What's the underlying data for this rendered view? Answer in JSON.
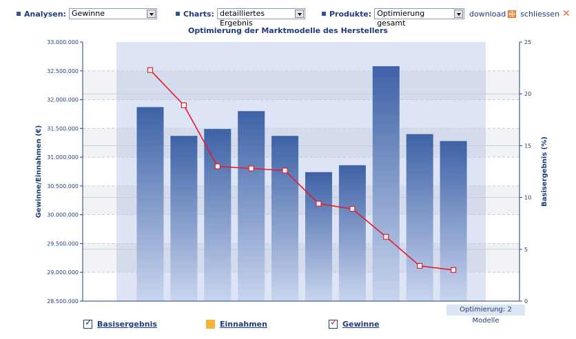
{
  "toolbar": {
    "analysen": {
      "label": "Analysen:",
      "value": "Gewinne"
    },
    "charts": {
      "label": "Charts:",
      "value": "detailliertes Ergebnis"
    },
    "produkte": {
      "label": "Produkte:",
      "value": "Optimierung gesamt"
    },
    "download_label": "download",
    "close_label": "schliessen"
  },
  "legend": [
    {
      "label": "Basisergebnis",
      "marker": "checkbox",
      "checked": true,
      "color": "#1f3c7a"
    },
    {
      "label": "Einnahmen",
      "marker": "square",
      "checked": false,
      "color": "#f5b337"
    },
    {
      "label": "Gewinne",
      "marker": "checkbox",
      "checked": true,
      "color": "#e8192c"
    }
  ],
  "optimization_badge": "Optimierung: 2 Modelle",
  "chart_data": {
    "type": "bar",
    "title": "Optimierung der Marktmodelle des Herstellers",
    "ylabel": "Gewinne/Einnahmen (€)",
    "y2label": "Basisergebnis (%)",
    "ylim": [
      28500000,
      33000000
    ],
    "y2lim": [
      0,
      25
    ],
    "yticks": [
      "33.000.000",
      "32.500.000",
      "32.000.000",
      "31.500.000",
      "31.000.000",
      "30.500.000",
      "30.000.000",
      "29.500.000",
      "29.000.000",
      "28.500.000"
    ],
    "y2ticks": [
      "25",
      "20",
      "15",
      "10",
      "5",
      "0"
    ],
    "grid": true,
    "series": [
      {
        "name": "Einnahmen",
        "type": "bar",
        "color": "#2f5a9e",
        "values": [
          31870000,
          31370000,
          31490000,
          31800000,
          31370000,
          30740000,
          30860000,
          32580000,
          31400000,
          31280000
        ]
      },
      {
        "name": "Gewinne",
        "type": "line",
        "axis": "right",
        "color": "#e8192c",
        "values": [
          22.3,
          18.9,
          13.0,
          12.8,
          12.6,
          9.4,
          8.9,
          6.2,
          3.4,
          3.0
        ]
      }
    ]
  }
}
